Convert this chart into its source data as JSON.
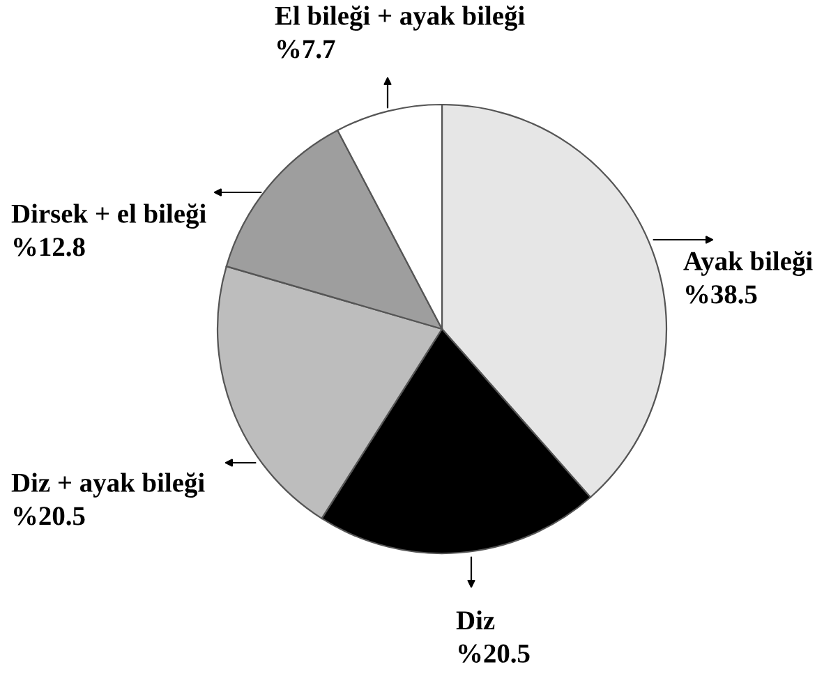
{
  "chart_data": {
    "type": "pie",
    "categories": [
      "Ayak bileği",
      "Diz",
      "Diz + ayak bileği",
      "Dirsek + el bileği",
      "El bileği + ayak bileği"
    ],
    "values": [
      38.5,
      20.5,
      20.5,
      12.8,
      7.7
    ],
    "value_labels": [
      "%38.5",
      "%20.5",
      "%20.5",
      "%12.8",
      "%7.7"
    ],
    "colors": [
      "#e6e6e6",
      "#000000",
      "#bdbdbd",
      "#9e9e9e",
      "#ffffff"
    ]
  }
}
